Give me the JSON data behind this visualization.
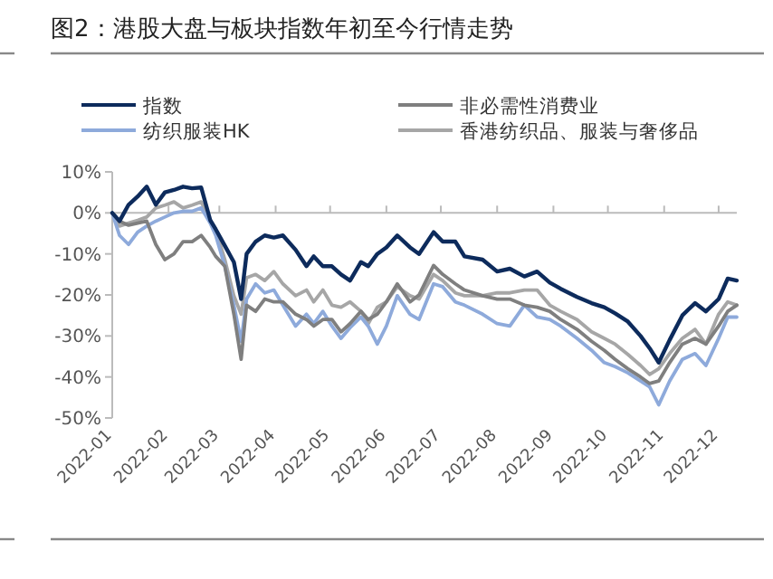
{
  "chart_data": {
    "type": "line",
    "title": "图2：港股大盘与板块指数年初至今行情走势",
    "x": [
      "2022-01-01",
      "2022-01-05",
      "2022-01-10",
      "2022-01-15",
      "2022-01-20",
      "2022-01-25",
      "2022-01-30",
      "2022-02-04",
      "2022-02-09",
      "2022-02-14",
      "2022-02-19",
      "2022-02-24",
      "2022-02-27",
      "2022-03-04",
      "2022-03-09",
      "2022-03-13",
      "2022-03-16",
      "2022-03-21",
      "2022-03-26",
      "2022-03-31",
      "2022-04-05",
      "2022-04-12",
      "2022-04-18",
      "2022-04-22",
      "2022-04-27",
      "2022-05-02",
      "2022-05-07",
      "2022-05-12",
      "2022-05-18",
      "2022-05-22",
      "2022-05-27",
      "2022-06-01",
      "2022-06-07",
      "2022-06-14",
      "2022-06-19",
      "2022-06-27",
      "2022-07-02",
      "2022-07-09",
      "2022-07-14",
      "2022-07-24",
      "2022-08-01",
      "2022-08-08",
      "2022-08-16",
      "2022-08-23",
      "2022-08-30",
      "2022-09-05",
      "2022-09-14",
      "2022-09-22",
      "2022-09-29",
      "2022-10-05",
      "2022-10-12",
      "2022-10-19",
      "2022-10-24",
      "2022-10-29",
      "2022-11-04",
      "2022-11-11",
      "2022-11-18",
      "2022-11-24",
      "2022-12-01",
      "2022-12-06",
      "2022-12-11"
    ],
    "series": [
      {
        "name": "指数",
        "color": "#0d2b5c",
        "values": [
          0,
          -2,
          2,
          4,
          6.4,
          2,
          5,
          5.6,
          6.4,
          6,
          6.2,
          -1.8,
          -4,
          -8,
          -12,
          -21,
          -10,
          -7,
          -5.5,
          -6,
          -5.5,
          -9,
          -13,
          -10.6,
          -13,
          -13,
          -15,
          -16.5,
          -12,
          -13,
          -10,
          -8.4,
          -5.5,
          -8.4,
          -10,
          -4.7,
          -7,
          -7,
          -10.6,
          -11.4,
          -14.3,
          -13.6,
          -15.5,
          -14.3,
          -17,
          -18.5,
          -20.5,
          -22,
          -23,
          -24.5,
          -26.5,
          -30,
          -33,
          -36.5,
          -31,
          -25,
          -22,
          -24,
          -21,
          -16,
          -16.5
        ]
      },
      {
        "name": "非必需性消费业",
        "color": "#7f7f7f",
        "values": [
          0,
          -2,
          -3,
          -2.5,
          -2,
          -7.7,
          -11.4,
          -10,
          -7,
          -7,
          -5.5,
          -8.4,
          -10.6,
          -13,
          -24.7,
          -35.7,
          -22.5,
          -24,
          -21,
          -21.7,
          -21.7,
          -24.7,
          -26,
          -27.6,
          -26,
          -26,
          -29,
          -27,
          -24,
          -26,
          -24.7,
          -21.7,
          -17.3,
          -21.7,
          -20,
          -12.8,
          -15,
          -17.3,
          -18.8,
          -20.2,
          -21,
          -21,
          -22.5,
          -23,
          -24,
          -26,
          -28.4,
          -31.3,
          -33.5,
          -35.7,
          -38,
          -40,
          -41.6,
          -41,
          -36.5,
          -32,
          -30.6,
          -32,
          -27.6,
          -24,
          -22.5
        ]
      },
      {
        "name": "纺织服装HK",
        "color": "#8eaadb",
        "values": [
          0,
          -5.5,
          -7.7,
          -4.7,
          -3.2,
          -2,
          -1,
          0,
          0.4,
          0.4,
          1.2,
          -2.5,
          -5.5,
          -13,
          -22.5,
          -31.3,
          -21,
          -17.3,
          -19.5,
          -18.8,
          -22.5,
          -27.6,
          -24.7,
          -27,
          -24,
          -27.6,
          -30.6,
          -28,
          -25.4,
          -27.6,
          -32,
          -27.6,
          -20.2,
          -24.7,
          -26,
          -17.3,
          -18,
          -21.7,
          -22.5,
          -24.7,
          -27,
          -27.6,
          -22.5,
          -25.4,
          -26,
          -27.6,
          -30.6,
          -33.5,
          -36.5,
          -37.5,
          -39,
          -41,
          -42.4,
          -46.8,
          -41,
          -35.7,
          -34.3,
          -37.2,
          -30.6,
          -25.4,
          -25.4
        ]
      },
      {
        "name": "香港纺织品、服装与奢侈品",
        "color": "#a6a6a6",
        "values": [
          0,
          -3.2,
          -2.5,
          -1.8,
          -1,
          1.2,
          1.9,
          2.7,
          1.2,
          1.9,
          2.7,
          -1.8,
          -4,
          -11.4,
          -20.2,
          -24.7,
          -15.8,
          -15,
          -16.5,
          -14.3,
          -17.3,
          -20.2,
          -18.8,
          -21.7,
          -18.8,
          -22.5,
          -23,
          -21.7,
          -24,
          -27,
          -23,
          -21.7,
          -18,
          -20.2,
          -21,
          -15,
          -16.5,
          -19.5,
          -20.2,
          -20.2,
          -19.5,
          -19.5,
          -18.8,
          -18.8,
          -22.5,
          -24,
          -26,
          -29,
          -30.6,
          -32,
          -34.5,
          -37.2,
          -39.4,
          -38,
          -34.3,
          -30.6,
          -28.4,
          -32,
          -24.7,
          -21.7,
          -22.5
        ]
      }
    ],
    "xlim": [
      "2022-01-01",
      "2022-12-11"
    ],
    "xticks": [
      "2022-01",
      "2022-02",
      "2022-03",
      "2022-04",
      "2022-05",
      "2022-06",
      "2022-07",
      "2022-08",
      "2022-09",
      "2022-10",
      "2022-11",
      "2022-12"
    ],
    "ylim": [
      -50,
      10
    ],
    "yticks": [
      {
        "value": 10,
        "label": "10%"
      },
      {
        "value": 0,
        "label": "0%"
      },
      {
        "value": -10,
        "label": "-10%"
      },
      {
        "value": -20,
        "label": "-20%"
      },
      {
        "value": -30,
        "label": "-30%"
      },
      {
        "value": -40,
        "label": "-40%"
      },
      {
        "value": -50,
        "label": "-50%"
      }
    ],
    "legend": "top",
    "marker": "none",
    "line_style": "solid"
  }
}
